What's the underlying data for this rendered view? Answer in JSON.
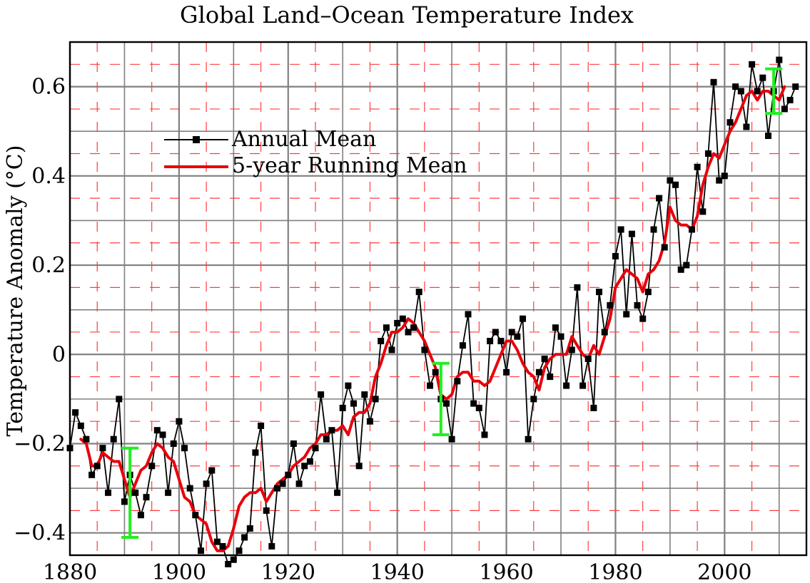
{
  "chart_data": {
    "type": "line",
    "title": "Global Land–Ocean Temperature Index",
    "xlabel": "",
    "ylabel": "Temperature Anomaly (°C)",
    "xlim": [
      1880,
      2015
    ],
    "ylim": [
      -0.45,
      0.7
    ],
    "x_ticks": [
      1880,
      1900,
      1920,
      1940,
      1960,
      1980,
      2000
    ],
    "x_tick_labels": [
      "1880",
      "1900",
      "1920",
      "1940",
      "1960",
      "1980",
      "2000"
    ],
    "y_ticks": [
      -0.4,
      -0.2,
      0,
      0.2,
      0.4,
      0.6
    ],
    "y_tick_labels": [
      "−0.4",
      "−0.2",
      "0",
      "0.2",
      "0.4",
      "0.6"
    ],
    "grid": true,
    "legend_position": "upper-left",
    "colors": {
      "annual": "#000000",
      "running": "#e8000b",
      "error_bars": "#22ee22",
      "minor_grid_dash": "#ff3c3c"
    },
    "series": [
      {
        "name": "Annual Mean",
        "marker": "square",
        "x": [
          1880,
          1881,
          1882,
          1883,
          1884,
          1885,
          1886,
          1887,
          1888,
          1889,
          1890,
          1891,
          1892,
          1893,
          1894,
          1895,
          1896,
          1897,
          1898,
          1899,
          1900,
          1901,
          1902,
          1903,
          1904,
          1905,
          1906,
          1907,
          1908,
          1909,
          1910,
          1911,
          1912,
          1913,
          1914,
          1915,
          1916,
          1917,
          1918,
          1919,
          1920,
          1921,
          1922,
          1923,
          1924,
          1925,
          1926,
          1927,
          1928,
          1929,
          1930,
          1931,
          1932,
          1933,
          1934,
          1935,
          1936,
          1937,
          1938,
          1939,
          1940,
          1941,
          1942,
          1943,
          1944,
          1945,
          1946,
          1947,
          1948,
          1949,
          1950,
          1951,
          1952,
          1953,
          1954,
          1955,
          1956,
          1957,
          1958,
          1959,
          1960,
          1961,
          1962,
          1963,
          1964,
          1965,
          1966,
          1967,
          1968,
          1969,
          1970,
          1971,
          1972,
          1973,
          1974,
          1975,
          1976,
          1977,
          1978,
          1979,
          1980,
          1981,
          1982,
          1983,
          1984,
          1985,
          1986,
          1987,
          1988,
          1989,
          1990,
          1991,
          1992,
          1993,
          1994,
          1995,
          1996,
          1997,
          1998,
          1999,
          2000,
          2001,
          2002,
          2003,
          2004,
          2005,
          2006,
          2007,
          2008,
          2009,
          2010,
          2011,
          2012,
          2013
        ],
        "y": [
          -0.21,
          -0.13,
          -0.16,
          -0.19,
          -0.27,
          -0.25,
          -0.21,
          -0.31,
          -0.19,
          -0.1,
          -0.33,
          -0.27,
          -0.31,
          -0.36,
          -0.32,
          -0.25,
          -0.17,
          -0.18,
          -0.31,
          -0.2,
          -0.15,
          -0.21,
          -0.3,
          -0.36,
          -0.44,
          -0.29,
          -0.26,
          -0.42,
          -0.43,
          -0.47,
          -0.46,
          -0.44,
          -0.41,
          -0.39,
          -0.22,
          -0.16,
          -0.35,
          -0.43,
          -0.3,
          -0.29,
          -0.27,
          -0.2,
          -0.29,
          -0.25,
          -0.24,
          -0.21,
          -0.09,
          -0.19,
          -0.17,
          -0.31,
          -0.12,
          -0.07,
          -0.11,
          -0.25,
          -0.09,
          -0.15,
          -0.1,
          0.03,
          0.06,
          0.01,
          0.07,
          0.08,
          0.05,
          0.06,
          0.14,
          0.01,
          -0.07,
          -0.04,
          -0.1,
          -0.11,
          -0.19,
          -0.06,
          0.02,
          0.09,
          -0.11,
          -0.12,
          -0.18,
          0.03,
          0.05,
          0.03,
          -0.04,
          0.05,
          0.04,
          0.08,
          -0.19,
          -0.1,
          -0.04,
          -0.01,
          -0.05,
          0.06,
          0.04,
          -0.07,
          0.01,
          0.15,
          -0.07,
          -0.01,
          -0.12,
          0.14,
          0.05,
          0.11,
          0.22,
          0.28,
          0.09,
          0.27,
          0.11,
          0.08,
          0.14,
          0.28,
          0.35,
          0.24,
          0.39,
          0.38,
          0.19,
          0.2,
          0.28,
          0.42,
          0.32,
          0.45,
          0.61,
          0.39,
          0.4,
          0.52,
          0.6,
          0.59,
          0.51,
          0.65,
          0.59,
          0.62,
          0.49,
          0.59,
          0.66,
          0.55,
          0.57,
          0.6
        ]
      },
      {
        "name": "5-year Running Mean",
        "x": [
          1882,
          1883,
          1884,
          1885,
          1886,
          1887,
          1888,
          1889,
          1890,
          1891,
          1892,
          1893,
          1894,
          1895,
          1896,
          1897,
          1898,
          1899,
          1900,
          1901,
          1902,
          1903,
          1904,
          1905,
          1906,
          1907,
          1908,
          1909,
          1910,
          1911,
          1912,
          1913,
          1914,
          1915,
          1916,
          1917,
          1918,
          1919,
          1920,
          1921,
          1922,
          1923,
          1924,
          1925,
          1926,
          1927,
          1928,
          1929,
          1930,
          1931,
          1932,
          1933,
          1934,
          1935,
          1936,
          1937,
          1938,
          1939,
          1940,
          1941,
          1942,
          1943,
          1944,
          1945,
          1946,
          1947,
          1948,
          1949,
          1950,
          1951,
          1952,
          1953,
          1954,
          1955,
          1956,
          1957,
          1958,
          1959,
          1960,
          1961,
          1962,
          1963,
          1964,
          1965,
          1966,
          1967,
          1968,
          1969,
          1970,
          1971,
          1972,
          1973,
          1974,
          1975,
          1976,
          1977,
          1978,
          1979,
          1980,
          1981,
          1982,
          1983,
          1984,
          1985,
          1986,
          1987,
          1988,
          1989,
          1990,
          1991,
          1992,
          1993,
          1994,
          1995,
          1996,
          1997,
          1998,
          1999,
          2000,
          2001,
          2002,
          2003,
          2004,
          2005,
          2006,
          2007,
          2008,
          2009,
          2010,
          2011
        ],
        "y": [
          -0.19,
          -0.2,
          -0.25,
          -0.25,
          -0.22,
          -0.23,
          -0.24,
          -0.24,
          -0.28,
          -0.32,
          -0.29,
          -0.26,
          -0.25,
          -0.22,
          -0.2,
          -0.21,
          -0.23,
          -0.24,
          -0.28,
          -0.32,
          -0.33,
          -0.36,
          -0.37,
          -0.38,
          -0.42,
          -0.44,
          -0.44,
          -0.43,
          -0.39,
          -0.34,
          -0.32,
          -0.31,
          -0.31,
          -0.3,
          -0.33,
          -0.31,
          -0.29,
          -0.28,
          -0.27,
          -0.25,
          -0.24,
          -0.23,
          -0.21,
          -0.2,
          -0.18,
          -0.18,
          -0.17,
          -0.17,
          -0.16,
          -0.18,
          -0.14,
          -0.13,
          -0.13,
          -0.11,
          -0.05,
          -0.02,
          0.02,
          0.05,
          0.05,
          0.06,
          0.08,
          0.07,
          0.05,
          0.03,
          0.0,
          -0.03,
          -0.09,
          -0.1,
          -0.09,
          -0.05,
          -0.04,
          -0.04,
          -0.06,
          -0.06,
          -0.07,
          -0.06,
          -0.03,
          0.0,
          0.03,
          0.03,
          0.01,
          -0.02,
          -0.04,
          -0.05,
          -0.08,
          -0.03,
          -0.01,
          0.0,
          0.0,
          0.0,
          0.04,
          0.02,
          0.0,
          -0.01,
          0.02,
          0.0,
          0.04,
          0.08,
          0.15,
          0.17,
          0.19,
          0.18,
          0.17,
          0.14,
          0.18,
          0.19,
          0.21,
          0.25,
          0.33,
          0.3,
          0.29,
          0.29,
          0.28,
          0.31,
          0.38,
          0.42,
          0.45,
          0.44,
          0.47,
          0.5,
          0.52,
          0.55,
          0.58,
          0.59,
          0.57,
          0.59,
          0.59,
          0.58,
          0.57,
          0.6
        ]
      }
    ],
    "error_bars": [
      {
        "x": 1891,
        "low": -0.41,
        "high": -0.21
      },
      {
        "x": 1948,
        "low": -0.18,
        "high": -0.02
      },
      {
        "x": 2009,
        "low": 0.54,
        "high": 0.64
      }
    ]
  }
}
